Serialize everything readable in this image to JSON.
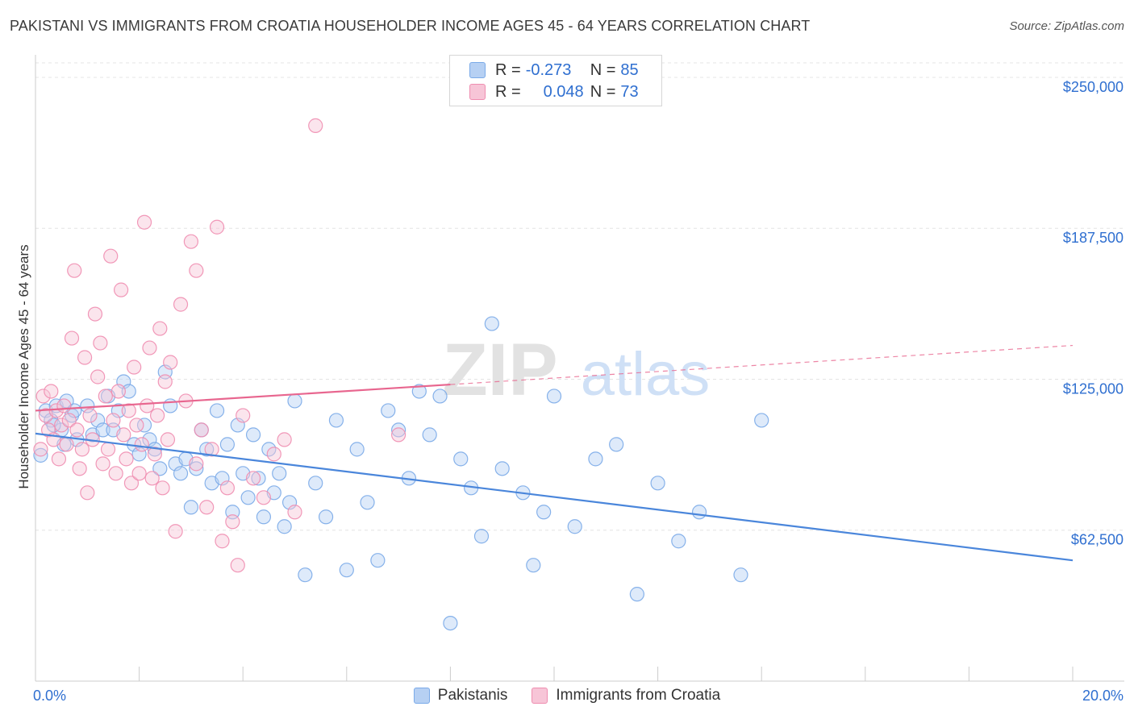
{
  "title": "PAKISTANI VS IMMIGRANTS FROM CROATIA HOUSEHOLDER INCOME AGES 45 - 64 YEARS CORRELATION CHART",
  "source": "Source: ZipAtlas.com",
  "watermark": {
    "zip": "ZIP",
    "atlas": "atlas"
  },
  "legend": {
    "r_label": "R =",
    "n_label": "N =",
    "rows": [
      {
        "name": "Pakistanis",
        "r": "-0.273",
        "n": "85",
        "color": "#7aaae8",
        "fill": "#b6d0f3"
      },
      {
        "name": "Immigrants from Croatia",
        "r": "0.048",
        "n": "73",
        "color": "#ef8db0",
        "fill": "#f7c5d7"
      }
    ]
  },
  "chart_data": {
    "type": "scatter",
    "title": "PAKISTANI VS IMMIGRANTS FROM CROATIA HOUSEHOLDER INCOME AGES 45 - 64 YEARS CORRELATION CHART",
    "xlabel": "",
    "ylabel": "Householder Income Ages 45 - 64 years",
    "xlim": [
      0,
      20
    ],
    "ylim": [
      0,
      256000
    ],
    "x_tick_labels": [
      {
        "value": 0,
        "label": "0.0%"
      },
      {
        "value": 20,
        "label": "20.0%"
      }
    ],
    "y_ticks": [
      {
        "value": 62500,
        "label": "$62,500"
      },
      {
        "value": 125000,
        "label": "$125,000"
      },
      {
        "value": 187500,
        "label": "$187,500"
      },
      {
        "value": 250000,
        "label": "$250,000"
      }
    ],
    "grid": true,
    "legend_position": "top-center",
    "series": [
      {
        "name": "Pakistanis",
        "color": "#4a86db",
        "trend": {
          "x": [
            0,
            20
          ],
          "y": [
            102500,
            50000
          ],
          "style": "solid"
        },
        "points": [
          [
            0.1,
            93500
          ],
          [
            0.2,
            112000
          ],
          [
            0.3,
            108000
          ],
          [
            0.4,
            114000
          ],
          [
            0.5,
            104000
          ],
          [
            0.6,
            116000
          ],
          [
            0.7,
            110000
          ],
          [
            0.8,
            100000
          ],
          [
            1.0,
            114000
          ],
          [
            1.1,
            102000
          ],
          [
            1.2,
            108000
          ],
          [
            1.3,
            104000
          ],
          [
            1.4,
            118000
          ],
          [
            1.5,
            104000
          ],
          [
            1.6,
            112000
          ],
          [
            1.7,
            124000
          ],
          [
            1.8,
            120000
          ],
          [
            1.9,
            98000
          ],
          [
            2.0,
            94000
          ],
          [
            2.1,
            106000
          ],
          [
            2.2,
            100000
          ],
          [
            2.3,
            96000
          ],
          [
            2.4,
            88000
          ],
          [
            2.5,
            128000
          ],
          [
            2.6,
            114000
          ],
          [
            2.7,
            90000
          ],
          [
            2.8,
            86000
          ],
          [
            2.9,
            92000
          ],
          [
            3.0,
            72000
          ],
          [
            3.1,
            88000
          ],
          [
            3.2,
            104000
          ],
          [
            3.3,
            96000
          ],
          [
            3.4,
            82000
          ],
          [
            3.5,
            112000
          ],
          [
            3.6,
            84000
          ],
          [
            3.7,
            98000
          ],
          [
            3.8,
            70000
          ],
          [
            3.9,
            106000
          ],
          [
            4.0,
            86000
          ],
          [
            4.1,
            76000
          ],
          [
            4.2,
            102000
          ],
          [
            4.3,
            84000
          ],
          [
            4.4,
            68000
          ],
          [
            4.5,
            96000
          ],
          [
            4.6,
            78000
          ],
          [
            4.7,
            86000
          ],
          [
            4.8,
            64000
          ],
          [
            4.9,
            74000
          ],
          [
            5.0,
            116000
          ],
          [
            5.2,
            44000
          ],
          [
            5.4,
            82000
          ],
          [
            5.6,
            68000
          ],
          [
            5.8,
            108000
          ],
          [
            6.0,
            46000
          ],
          [
            6.2,
            96000
          ],
          [
            6.4,
            74000
          ],
          [
            6.6,
            50000
          ],
          [
            6.8,
            112000
          ],
          [
            7.0,
            104000
          ],
          [
            7.2,
            84000
          ],
          [
            7.4,
            120000
          ],
          [
            7.6,
            102000
          ],
          [
            7.8,
            118000
          ],
          [
            8.0,
            24000
          ],
          [
            8.2,
            92000
          ],
          [
            8.4,
            80000
          ],
          [
            8.6,
            60000
          ],
          [
            8.8,
            148000
          ],
          [
            9.0,
            88000
          ],
          [
            9.4,
            78000
          ],
          [
            9.6,
            48000
          ],
          [
            9.8,
            70000
          ],
          [
            10.0,
            118000
          ],
          [
            10.4,
            64000
          ],
          [
            10.8,
            92000
          ],
          [
            11.2,
            98000
          ],
          [
            11.6,
            36000
          ],
          [
            12.0,
            82000
          ],
          [
            12.4,
            58000
          ],
          [
            12.8,
            70000
          ],
          [
            13.6,
            44000
          ],
          [
            14.0,
            108000
          ],
          [
            0.35,
            106000
          ],
          [
            0.55,
            98000
          ],
          [
            0.75,
            112000
          ]
        ]
      },
      {
        "name": "Immigrants from Croatia",
        "color": "#e8668f",
        "trend": {
          "x": [
            0,
            20
          ],
          "y": [
            112000,
            139000
          ],
          "style": "solid-to-dashed",
          "solid_until": 8
        },
        "points": [
          [
            0.1,
            96000
          ],
          [
            0.15,
            118000
          ],
          [
            0.2,
            110000
          ],
          [
            0.25,
            104000
          ],
          [
            0.3,
            120000
          ],
          [
            0.35,
            100000
          ],
          [
            0.4,
            112000
          ],
          [
            0.45,
            92000
          ],
          [
            0.5,
            106000
          ],
          [
            0.55,
            114000
          ],
          [
            0.6,
            98000
          ],
          [
            0.65,
            108000
          ],
          [
            0.7,
            142000
          ],
          [
            0.75,
            170000
          ],
          [
            0.8,
            104000
          ],
          [
            0.85,
            88000
          ],
          [
            0.9,
            96000
          ],
          [
            0.95,
            134000
          ],
          [
            1.0,
            78000
          ],
          [
            1.05,
            110000
          ],
          [
            1.1,
            100000
          ],
          [
            1.15,
            152000
          ],
          [
            1.2,
            126000
          ],
          [
            1.25,
            140000
          ],
          [
            1.3,
            90000
          ],
          [
            1.35,
            118000
          ],
          [
            1.4,
            96000
          ],
          [
            1.45,
            176000
          ],
          [
            1.5,
            108000
          ],
          [
            1.55,
            86000
          ],
          [
            1.6,
            120000
          ],
          [
            1.65,
            162000
          ],
          [
            1.7,
            102000
          ],
          [
            1.75,
            92000
          ],
          [
            1.8,
            112000
          ],
          [
            1.85,
            82000
          ],
          [
            1.9,
            130000
          ],
          [
            1.95,
            106000
          ],
          [
            2.0,
            86000
          ],
          [
            2.05,
            98000
          ],
          [
            2.1,
            190000
          ],
          [
            2.15,
            114000
          ],
          [
            2.2,
            138000
          ],
          [
            2.25,
            84000
          ],
          [
            2.3,
            94000
          ],
          [
            2.35,
            110000
          ],
          [
            2.4,
            146000
          ],
          [
            2.45,
            80000
          ],
          [
            2.5,
            124000
          ],
          [
            2.55,
            100000
          ],
          [
            2.6,
            132000
          ],
          [
            2.7,
            62000
          ],
          [
            2.8,
            156000
          ],
          [
            2.9,
            116000
          ],
          [
            3.0,
            182000
          ],
          [
            3.1,
            90000
          ],
          [
            3.2,
            104000
          ],
          [
            3.3,
            72000
          ],
          [
            3.4,
            96000
          ],
          [
            3.5,
            188000
          ],
          [
            3.6,
            58000
          ],
          [
            3.7,
            80000
          ],
          [
            3.8,
            66000
          ],
          [
            3.9,
            48000
          ],
          [
            4.0,
            110000
          ],
          [
            4.2,
            84000
          ],
          [
            4.4,
            76000
          ],
          [
            4.6,
            94000
          ],
          [
            4.8,
            100000
          ],
          [
            5.0,
            70000
          ],
          [
            7.0,
            102000
          ],
          [
            5.4,
            230000
          ],
          [
            3.1,
            170000
          ]
        ]
      }
    ]
  }
}
